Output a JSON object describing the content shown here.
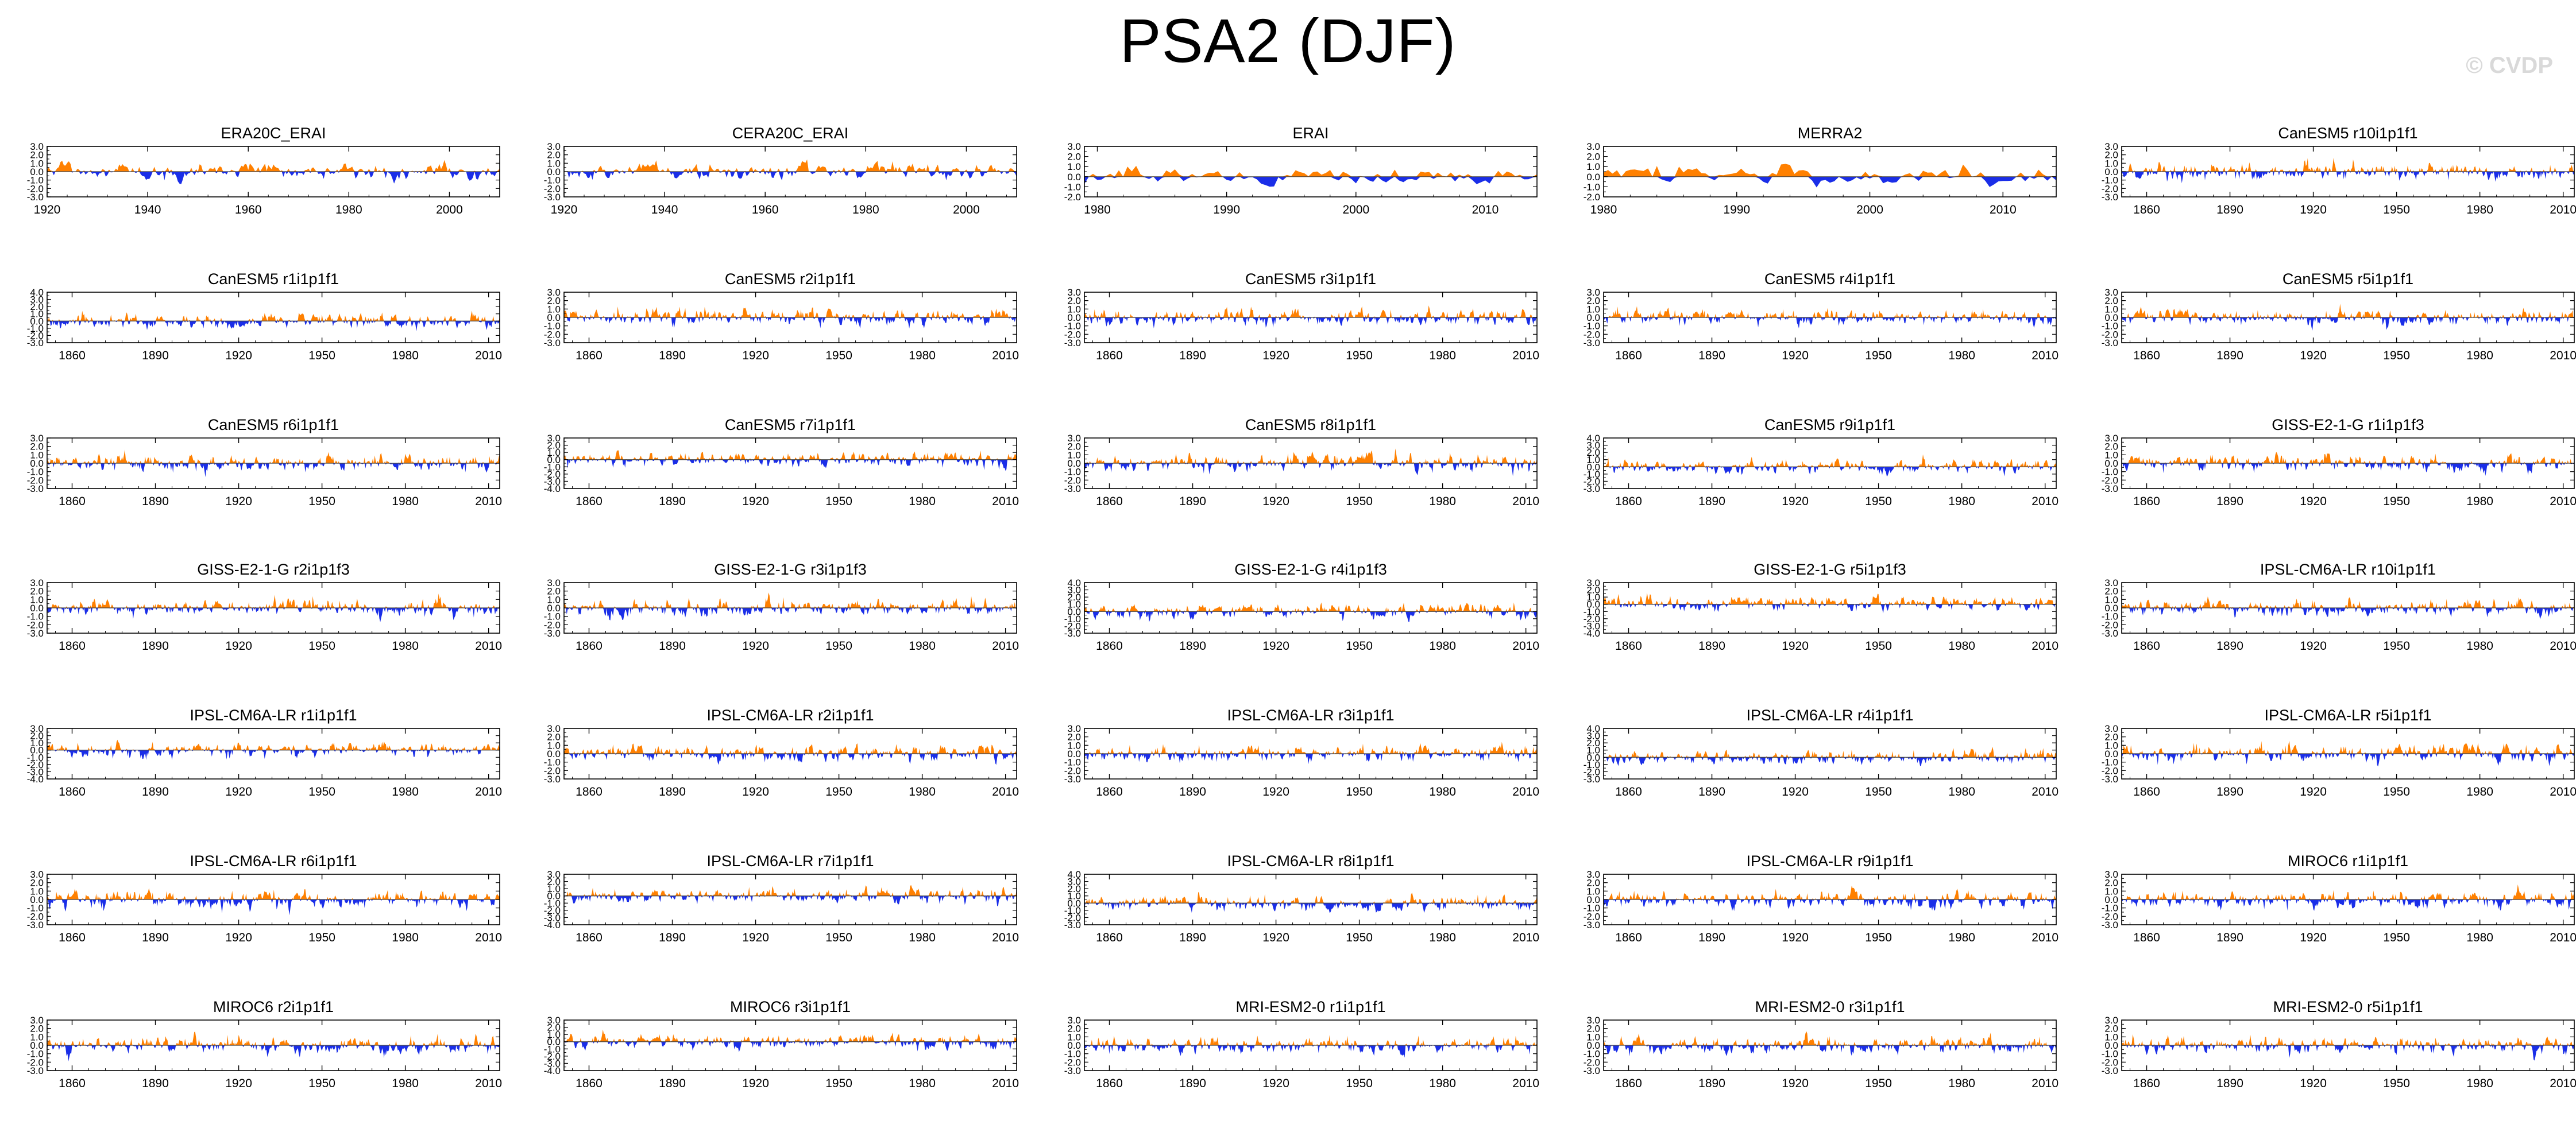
{
  "title": "PSA2 (DJF)",
  "watermark": "© CVDP",
  "colors": {
    "positive": "#ff8000",
    "negative": "#1a2ee8",
    "axis": "#000000",
    "background": "#ffffff"
  },
  "chart_data": [
    {
      "type": "area",
      "title": "ERA20C_ERAI",
      "x_range": [
        1920,
        2010
      ],
      "xticks": [
        1920,
        1940,
        1960,
        1980,
        2000
      ],
      "ylim": [
        -3.0,
        3.0
      ],
      "yticks": [
        3.0,
        2.0,
        1.0,
        0.0,
        -1.0,
        -2.0,
        -3.0
      ],
      "seed": 11
    },
    {
      "type": "area",
      "title": "CERA20C_ERAI",
      "x_range": [
        1920,
        2010
      ],
      "xticks": [
        1920,
        1940,
        1960,
        1980,
        2000
      ],
      "ylim": [
        -3.0,
        3.0
      ],
      "yticks": [
        3.0,
        2.0,
        1.0,
        0.0,
        -1.0,
        -2.0,
        -3.0
      ],
      "seed": 23
    },
    {
      "type": "area",
      "title": "ERAI",
      "x_range": [
        1979,
        2014
      ],
      "xticks": [
        1980,
        1990,
        2000,
        2010
      ],
      "ylim": [
        -2.0,
        3.0
      ],
      "yticks": [
        3.0,
        2.0,
        1.0,
        0.0,
        -1.0,
        -2.0
      ],
      "seed": 37
    },
    {
      "type": "area",
      "title": "MERRA2",
      "x_range": [
        1980,
        2014
      ],
      "xticks": [
        1980,
        1990,
        2000,
        2010
      ],
      "ylim": [
        -2.0,
        3.0
      ],
      "yticks": [
        3.0,
        2.0,
        1.0,
        0.0,
        -1.0,
        -2.0
      ],
      "seed": 41
    },
    {
      "type": "area",
      "title": "CanESM5 r10i1p1f1",
      "x_range": [
        1851,
        2014
      ],
      "xticks": [
        1860,
        1890,
        1920,
        1950,
        1980,
        2010
      ],
      "ylim": [
        -3.0,
        3.0
      ],
      "yticks": [
        3.0,
        2.0,
        1.0,
        0.0,
        -1.0,
        -2.0,
        -3.0
      ],
      "seed": 53
    },
    {
      "type": "area",
      "title": "CanESM5 r1i1p1f1",
      "x_range": [
        1851,
        2014
      ],
      "xticks": [
        1860,
        1890,
        1920,
        1950,
        1980,
        2010
      ],
      "ylim": [
        -3.0,
        4.0
      ],
      "yticks": [
        4.0,
        3.0,
        2.0,
        1.0,
        0.0,
        -1.0,
        -2.0,
        -3.0
      ],
      "seed": 61
    },
    {
      "type": "area",
      "title": "CanESM5 r2i1p1f1",
      "x_range": [
        1851,
        2014
      ],
      "xticks": [
        1860,
        1890,
        1920,
        1950,
        1980,
        2010
      ],
      "ylim": [
        -3.0,
        3.0
      ],
      "yticks": [
        3.0,
        2.0,
        1.0,
        0.0,
        -1.0,
        -2.0,
        -3.0
      ],
      "seed": 67
    },
    {
      "type": "area",
      "title": "CanESM5 r3i1p1f1",
      "x_range": [
        1851,
        2014
      ],
      "xticks": [
        1860,
        1890,
        1920,
        1950,
        1980,
        2010
      ],
      "ylim": [
        -3.0,
        3.0
      ],
      "yticks": [
        3.0,
        2.0,
        1.0,
        0.0,
        -1.0,
        -2.0,
        -3.0
      ],
      "seed": 71
    },
    {
      "type": "area",
      "title": "CanESM5 r4i1p1f1",
      "x_range": [
        1851,
        2014
      ],
      "xticks": [
        1860,
        1890,
        1920,
        1950,
        1980,
        2010
      ],
      "ylim": [
        -3.0,
        3.0
      ],
      "yticks": [
        3.0,
        2.0,
        1.0,
        0.0,
        -1.0,
        -2.0,
        -3.0
      ],
      "seed": 73
    },
    {
      "type": "area",
      "title": "CanESM5 r5i1p1f1",
      "x_range": [
        1851,
        2014
      ],
      "xticks": [
        1860,
        1890,
        1920,
        1950,
        1980,
        2010
      ],
      "ylim": [
        -3.0,
        3.0
      ],
      "yticks": [
        3.0,
        2.0,
        1.0,
        0.0,
        -1.0,
        -2.0,
        -3.0
      ],
      "seed": 79
    },
    {
      "type": "area",
      "title": "CanESM5 r6i1p1f1",
      "x_range": [
        1851,
        2014
      ],
      "xticks": [
        1860,
        1890,
        1920,
        1950,
        1980,
        2010
      ],
      "ylim": [
        -3.0,
        3.0
      ],
      "yticks": [
        3.0,
        2.0,
        1.0,
        0.0,
        -1.0,
        -2.0,
        -3.0
      ],
      "seed": 83
    },
    {
      "type": "area",
      "title": "CanESM5 r7i1p1f1",
      "x_range": [
        1851,
        2014
      ],
      "xticks": [
        1860,
        1890,
        1920,
        1950,
        1980,
        2010
      ],
      "ylim": [
        -4.0,
        3.0
      ],
      "yticks": [
        3.0,
        2.0,
        1.0,
        0.0,
        -1.0,
        -2.0,
        -3.0,
        -4.0
      ],
      "seed": 89
    },
    {
      "type": "area",
      "title": "CanESM5 r8i1p1f1",
      "x_range": [
        1851,
        2014
      ],
      "xticks": [
        1860,
        1890,
        1920,
        1950,
        1980,
        2010
      ],
      "ylim": [
        -3.0,
        3.0
      ],
      "yticks": [
        3.0,
        2.0,
        1.0,
        0.0,
        -1.0,
        -2.0,
        -3.0
      ],
      "seed": 97
    },
    {
      "type": "area",
      "title": "CanESM5 r9i1p1f1",
      "x_range": [
        1851,
        2014
      ],
      "xticks": [
        1860,
        1890,
        1920,
        1950,
        1980,
        2010
      ],
      "ylim": [
        -3.0,
        4.0
      ],
      "yticks": [
        4.0,
        3.0,
        2.0,
        1.0,
        0.0,
        -1.0,
        -2.0,
        -3.0
      ],
      "seed": 101
    },
    {
      "type": "area",
      "title": "GISS-E2-1-G r1i1p1f3",
      "x_range": [
        1851,
        2014
      ],
      "xticks": [
        1860,
        1890,
        1920,
        1950,
        1980,
        2010
      ],
      "ylim": [
        -3.0,
        3.0
      ],
      "yticks": [
        3.0,
        2.0,
        1.0,
        0.0,
        -1.0,
        -2.0,
        -3.0
      ],
      "seed": 103
    },
    {
      "type": "area",
      "title": "GISS-E2-1-G r2i1p1f3",
      "x_range": [
        1851,
        2014
      ],
      "xticks": [
        1860,
        1890,
        1920,
        1950,
        1980,
        2010
      ],
      "ylim": [
        -3.0,
        3.0
      ],
      "yticks": [
        3.0,
        2.0,
        1.0,
        0.0,
        -1.0,
        -2.0,
        -3.0
      ],
      "seed": 107
    },
    {
      "type": "area",
      "title": "GISS-E2-1-G r3i1p1f3",
      "x_range": [
        1851,
        2014
      ],
      "xticks": [
        1860,
        1890,
        1920,
        1950,
        1980,
        2010
      ],
      "ylim": [
        -3.0,
        3.0
      ],
      "yticks": [
        3.0,
        2.0,
        1.0,
        0.0,
        -1.0,
        -2.0,
        -3.0
      ],
      "seed": 109
    },
    {
      "type": "area",
      "title": "GISS-E2-1-G r4i1p1f3",
      "x_range": [
        1851,
        2014
      ],
      "xticks": [
        1860,
        1890,
        1920,
        1950,
        1980,
        2010
      ],
      "ylim": [
        -3.0,
        4.0
      ],
      "yticks": [
        4.0,
        3.0,
        2.0,
        1.0,
        0.0,
        -1.0,
        -2.0,
        -3.0
      ],
      "seed": 113
    },
    {
      "type": "area",
      "title": "GISS-E2-1-G r5i1p1f3",
      "x_range": [
        1851,
        2014
      ],
      "xticks": [
        1860,
        1890,
        1920,
        1950,
        1980,
        2010
      ],
      "ylim": [
        -4.0,
        3.0
      ],
      "yticks": [
        3.0,
        2.0,
        1.0,
        0.0,
        -1.0,
        -2.0,
        -3.0,
        -4.0
      ],
      "seed": 127
    },
    {
      "type": "area",
      "title": "IPSL-CM6A-LR r10i1p1f1",
      "x_range": [
        1851,
        2014
      ],
      "xticks": [
        1860,
        1890,
        1920,
        1950,
        1980,
        2010
      ],
      "ylim": [
        -3.0,
        3.0
      ],
      "yticks": [
        3.0,
        2.0,
        1.0,
        0.0,
        -1.0,
        -2.0,
        -3.0
      ],
      "seed": 131
    },
    {
      "type": "area",
      "title": "IPSL-CM6A-LR r1i1p1f1",
      "x_range": [
        1851,
        2014
      ],
      "xticks": [
        1860,
        1890,
        1920,
        1950,
        1980,
        2010
      ],
      "ylim": [
        -4.0,
        3.0
      ],
      "yticks": [
        3.0,
        2.0,
        1.0,
        0.0,
        -1.0,
        -2.0,
        -3.0,
        -4.0
      ],
      "seed": 137
    },
    {
      "type": "area",
      "title": "IPSL-CM6A-LR r2i1p1f1",
      "x_range": [
        1851,
        2014
      ],
      "xticks": [
        1860,
        1890,
        1920,
        1950,
        1980,
        2010
      ],
      "ylim": [
        -3.0,
        3.0
      ],
      "yticks": [
        3.0,
        2.0,
        1.0,
        0.0,
        -1.0,
        -2.0,
        -3.0
      ],
      "seed": 139
    },
    {
      "type": "area",
      "title": "IPSL-CM6A-LR r3i1p1f1",
      "x_range": [
        1851,
        2014
      ],
      "xticks": [
        1860,
        1890,
        1920,
        1950,
        1980,
        2010
      ],
      "ylim": [
        -3.0,
        3.0
      ],
      "yticks": [
        3.0,
        2.0,
        1.0,
        0.0,
        -1.0,
        -2.0,
        -3.0
      ],
      "seed": 149
    },
    {
      "type": "area",
      "title": "IPSL-CM6A-LR r4i1p1f1",
      "x_range": [
        1851,
        2014
      ],
      "xticks": [
        1860,
        1890,
        1920,
        1950,
        1980,
        2010
      ],
      "ylim": [
        -3.0,
        4.0
      ],
      "yticks": [
        4.0,
        3.0,
        2.0,
        1.0,
        0.0,
        -1.0,
        -2.0,
        -3.0
      ],
      "seed": 151
    },
    {
      "type": "area",
      "title": "IPSL-CM6A-LR r5i1p1f1",
      "x_range": [
        1851,
        2014
      ],
      "xticks": [
        1860,
        1890,
        1920,
        1950,
        1980,
        2010
      ],
      "ylim": [
        -3.0,
        3.0
      ],
      "yticks": [
        3.0,
        2.0,
        1.0,
        0.0,
        -1.0,
        -2.0,
        -3.0
      ],
      "seed": 157
    },
    {
      "type": "area",
      "title": "IPSL-CM6A-LR r6i1p1f1",
      "x_range": [
        1851,
        2014
      ],
      "xticks": [
        1860,
        1890,
        1920,
        1950,
        1980,
        2010
      ],
      "ylim": [
        -3.0,
        3.0
      ],
      "yticks": [
        3.0,
        2.0,
        1.0,
        0.0,
        -1.0,
        -2.0,
        -3.0
      ],
      "seed": 163
    },
    {
      "type": "area",
      "title": "IPSL-CM6A-LR r7i1p1f1",
      "x_range": [
        1851,
        2014
      ],
      "xticks": [
        1860,
        1890,
        1920,
        1950,
        1980,
        2010
      ],
      "ylim": [
        -4.0,
        3.0
      ],
      "yticks": [
        3.0,
        2.0,
        1.0,
        0.0,
        -1.0,
        -2.0,
        -3.0,
        -4.0
      ],
      "seed": 167
    },
    {
      "type": "area",
      "title": "IPSL-CM6A-LR r8i1p1f1",
      "x_range": [
        1851,
        2014
      ],
      "xticks": [
        1860,
        1890,
        1920,
        1950,
        1980,
        2010
      ],
      "ylim": [
        -3.0,
        4.0
      ],
      "yticks": [
        4.0,
        3.0,
        2.0,
        1.0,
        0.0,
        -1.0,
        -2.0,
        -3.0
      ],
      "seed": 173
    },
    {
      "type": "area",
      "title": "IPSL-CM6A-LR r9i1p1f1",
      "x_range": [
        1851,
        2014
      ],
      "xticks": [
        1860,
        1890,
        1920,
        1950,
        1980,
        2010
      ],
      "ylim": [
        -3.0,
        3.0
      ],
      "yticks": [
        3.0,
        2.0,
        1.0,
        0.0,
        -1.0,
        -2.0,
        -3.0
      ],
      "seed": 179
    },
    {
      "type": "area",
      "title": "MIROC6 r1i1p1f1",
      "x_range": [
        1851,
        2014
      ],
      "xticks": [
        1860,
        1890,
        1920,
        1950,
        1980,
        2010
      ],
      "ylim": [
        -3.0,
        3.0
      ],
      "yticks": [
        3.0,
        2.0,
        1.0,
        0.0,
        -1.0,
        -2.0,
        -3.0
      ],
      "seed": 181
    },
    {
      "type": "area",
      "title": "MIROC6 r2i1p1f1",
      "x_range": [
        1851,
        2014
      ],
      "xticks": [
        1860,
        1890,
        1920,
        1950,
        1980,
        2010
      ],
      "ylim": [
        -3.0,
        3.0
      ],
      "yticks": [
        3.0,
        2.0,
        1.0,
        0.0,
        -1.0,
        -2.0,
        -3.0
      ],
      "seed": 191
    },
    {
      "type": "area",
      "title": "MIROC6 r3i1p1f1",
      "x_range": [
        1851,
        2014
      ],
      "xticks": [
        1860,
        1890,
        1920,
        1950,
        1980,
        2010
      ],
      "ylim": [
        -4.0,
        3.0
      ],
      "yticks": [
        3.0,
        2.0,
        1.0,
        0.0,
        -1.0,
        -2.0,
        -3.0,
        -4.0
      ],
      "seed": 193
    },
    {
      "type": "area",
      "title": "MRI-ESM2-0 r1i1p1f1",
      "x_range": [
        1851,
        2014
      ],
      "xticks": [
        1860,
        1890,
        1920,
        1950,
        1980,
        2010
      ],
      "ylim": [
        -3.0,
        3.0
      ],
      "yticks": [
        3.0,
        2.0,
        1.0,
        0.0,
        -1.0,
        -2.0,
        -3.0
      ],
      "seed": 197
    },
    {
      "type": "area",
      "title": "MRI-ESM2-0 r3i1p1f1",
      "x_range": [
        1851,
        2014
      ],
      "xticks": [
        1860,
        1890,
        1920,
        1950,
        1980,
        2010
      ],
      "ylim": [
        -3.0,
        3.0
      ],
      "yticks": [
        3.0,
        2.0,
        1.0,
        0.0,
        -1.0,
        -2.0,
        -3.0
      ],
      "seed": 199
    },
    {
      "type": "area",
      "title": "MRI-ESM2-0 r5i1p1f1",
      "x_range": [
        1851,
        2014
      ],
      "xticks": [
        1860,
        1890,
        1920,
        1950,
        1980,
        2010
      ],
      "ylim": [
        -3.0,
        3.0
      ],
      "yticks": [
        3.0,
        2.0,
        1.0,
        0.0,
        -1.0,
        -2.0,
        -3.0
      ],
      "seed": 211
    }
  ]
}
